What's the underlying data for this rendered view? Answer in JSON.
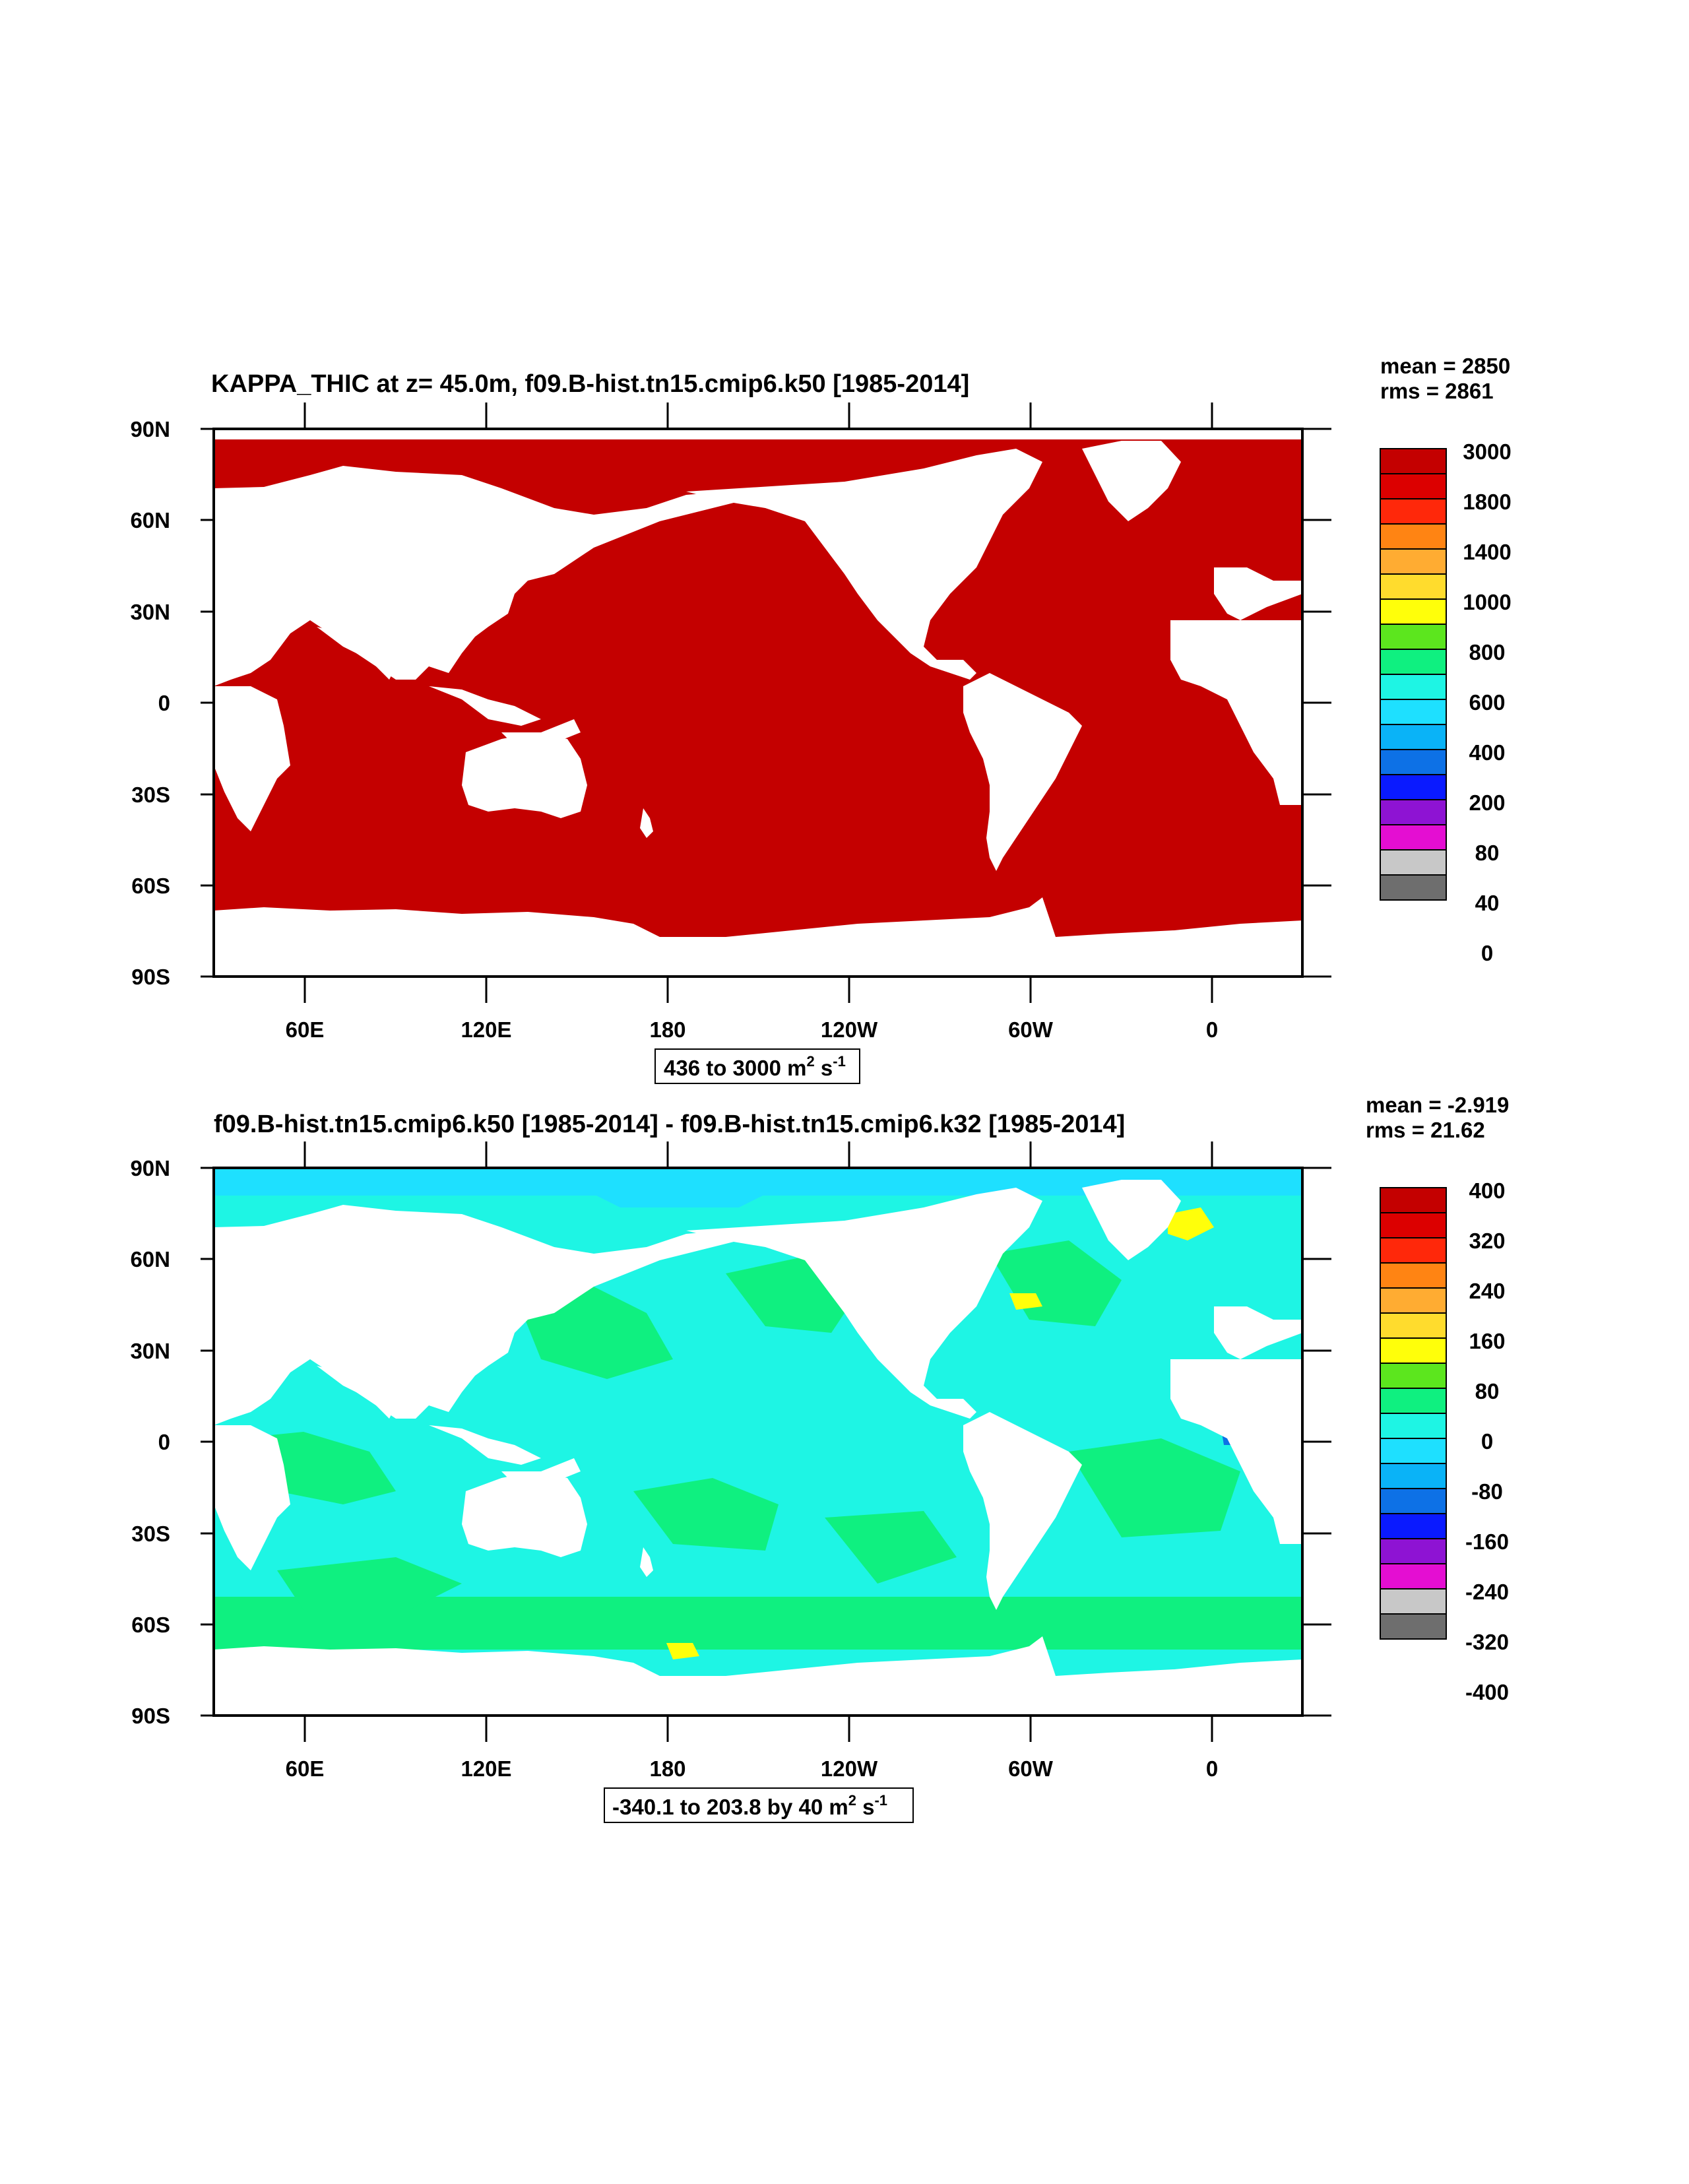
{
  "colors": {
    "land": "#ffffff",
    "frame": "#000000",
    "palette": [
      "#6e6e6e",
      "#c8c8c8",
      "#e40ed2",
      "#8e13d3",
      "#0a1aff",
      "#0d71e6",
      "#0ab3f7",
      "#1ee0ff",
      "#1ef5e4",
      "#0ff080",
      "#5ce61e",
      "#ffff0a",
      "#ffdc2d",
      "#ffac32",
      "#ff8413",
      "#ff280a",
      "#dc0000",
      "#c40000"
    ]
  },
  "axis": {
    "lat_labels": [
      "90N",
      "60N",
      "30N",
      "0",
      "30S",
      "60S",
      "90S"
    ],
    "lon_labels": [
      "60E",
      "120E",
      "180",
      "120W",
      "60W",
      "0"
    ]
  },
  "panels": [
    {
      "title": "KAPPA_THIC at z=  45.0m, f09.B-hist.tn15.cmip6.k50 [1985-2014]",
      "mean": "mean = 2850",
      "rms": "rms = 2861",
      "range": {
        "text": "436 to 3000 m",
        "sup1": "2",
        "mid": " s",
        "sup2": "-1"
      },
      "ocean_fill": "#c40000",
      "colorbar_labels": [
        "3000",
        "1800",
        "1400",
        "1000",
        "800",
        "600",
        "400",
        "200",
        "80",
        "40",
        "0"
      ],
      "colorbar_colors": [
        "#c40000",
        "#dc0000",
        "#ff280a",
        "#ff8413",
        "#ffac32",
        "#ffdc2d",
        "#ffff0a",
        "#5ce61e",
        "#0ff080",
        "#1ef5e4",
        "#1ee0ff",
        "#0ab3f7",
        "#0d71e6",
        "#0a1aff",
        "#8e13d3",
        "#e40ed2",
        "#c8c8c8",
        "#6e6e6e"
      ]
    },
    {
      "title": "f09.B-hist.tn15.cmip6.k50 [1985-2014] - f09.B-hist.tn15.cmip6.k32 [1985-2014]",
      "mean": "mean = -2.919",
      "rms": "rms = 21.62",
      "range": {
        "text": "-340.1 to 203.8 by 40 m",
        "sup1": "2",
        "mid": " s",
        "sup2": "-1"
      },
      "ocean_fill": "#1ef5e4",
      "colorbar_labels": [
        "400",
        "320",
        "240",
        "160",
        "80",
        "0",
        "-80",
        "-160",
        "-240",
        "-320",
        "-400"
      ],
      "colorbar_colors": [
        "#c40000",
        "#dc0000",
        "#ff280a",
        "#ff8413",
        "#ffac32",
        "#ffdc2d",
        "#ffff0a",
        "#5ce61e",
        "#0ff080",
        "#1ef5e4",
        "#1ee0ff",
        "#0ab3f7",
        "#0d71e6",
        "#0a1aff",
        "#8e13d3",
        "#e40ed2",
        "#c8c8c8",
        "#6e6e6e"
      ]
    }
  ]
}
